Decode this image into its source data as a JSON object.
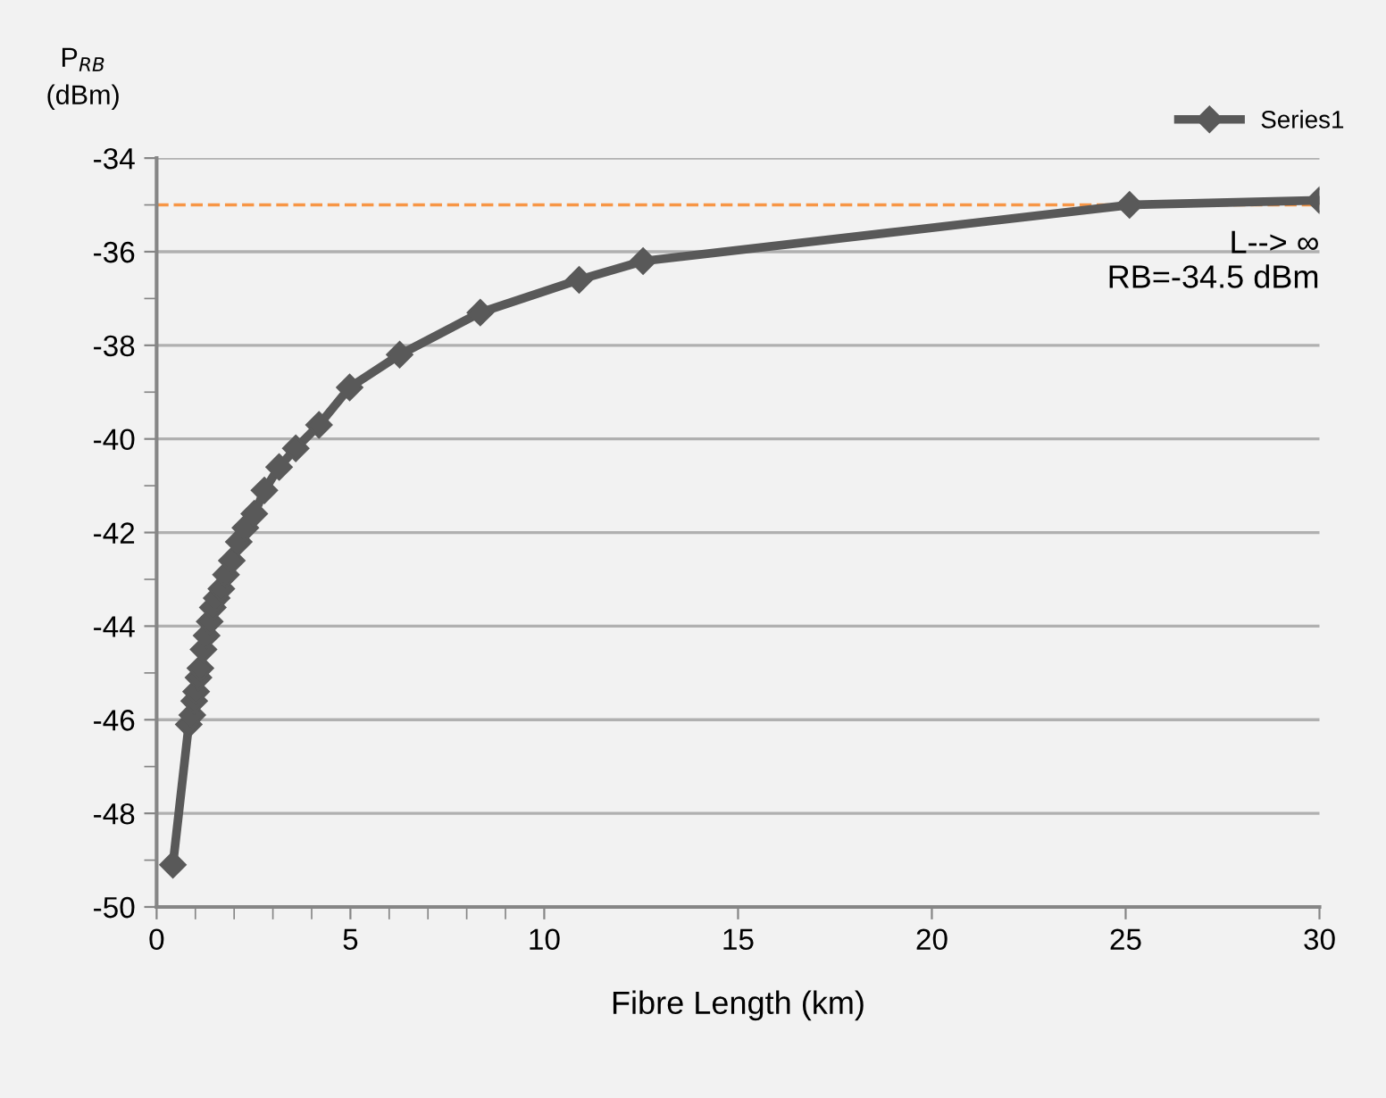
{
  "chart_data": {
    "type": "line",
    "xlabel": "Fibre Length (km)",
    "ylabel": "P$_{RB}$\n(dBm)",
    "x": [
      0.42,
      0.83,
      0.92,
      0.97,
      1.02,
      1.08,
      1.13,
      1.21,
      1.29,
      1.37,
      1.45,
      1.55,
      1.67,
      1.79,
      1.94,
      2.12,
      2.29,
      2.52,
      2.78,
      3.16,
      3.59,
      4.19,
      4.98,
      6.27,
      8.35,
      10.9,
      12.55,
      25.1,
      30
    ],
    "series": [
      {
        "name": "Series1",
        "color": "#595959",
        "values": [
          -49.1,
          -46.1,
          -45.9,
          -45.6,
          -45.4,
          -45.1,
          -44.9,
          -44.5,
          -44.2,
          -43.9,
          -43.6,
          -43.4,
          -43.2,
          -42.9,
          -42.6,
          -42.2,
          -41.9,
          -41.6,
          -41.1,
          -40.6,
          -40.2,
          -39.7,
          -38.9,
          -38.2,
          -37.3,
          -36.6,
          -36.2,
          -35.0,
          -34.9
        ]
      }
    ],
    "xlim": [
      0,
      30
    ],
    "xticks": [
      0,
      {
        "value": 1,
        "label": null
      },
      {
        "value": 2,
        "label": null
      },
      {
        "value": 3,
        "label": null
      },
      {
        "value": 4,
        "label": null
      },
      5,
      {
        "value": 6,
        "label": null
      },
      {
        "value": 7,
        "label": null
      },
      {
        "value": 8,
        "label": null
      },
      {
        "value": 9,
        "label": null
      },
      10,
      15,
      20,
      25,
      30
    ],
    "ylim": [
      -50,
      -34
    ],
    "yticks": [
      -50,
      {
        "value": -49,
        "label": null
      },
      -48,
      {
        "value": -47,
        "label": null
      },
      -46,
      {
        "value": -45,
        "label": null
      },
      -44,
      {
        "value": -43,
        "label": null
      },
      -42,
      {
        "value": -41,
        "label": null
      },
      -40,
      {
        "value": -39,
        "label": null
      },
      -38,
      {
        "value": -37,
        "label": null
      },
      -36,
      {
        "value": -35,
        "label": null
      },
      -34
    ],
    "grid": "y",
    "legend": "top right",
    "marker": "diamond",
    "line_style": "solid",
    "ref_lines": [
      {
        "axis": "y",
        "value": -35,
        "color": "#f79646",
        "line_style": "dashed"
      }
    ],
    "annotations": [
      {
        "text": "L--> ∞\nRB=-34.5 dBm",
        "x": 30,
        "y": -35
      }
    ]
  }
}
